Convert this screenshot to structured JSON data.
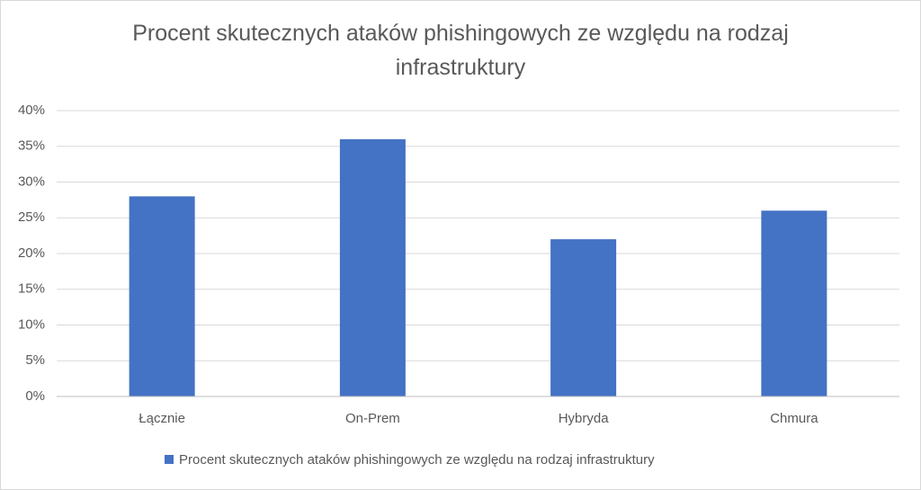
{
  "chart_data": {
    "type": "bar",
    "title": "Procent skutecznych ataków phishingowych ze względu na rodzaj infrastruktury",
    "categories": [
      "Łącznie",
      "On-Prem",
      "Hybryda",
      "Chmura"
    ],
    "series": [
      {
        "name": "Procent skutecznych ataków phishingowych ze względu na rodzaj infrastruktury",
        "color": "#4472c4",
        "values": [
          28,
          36,
          22,
          26
        ]
      }
    ],
    "ylim": [
      0,
      40
    ],
    "yticks": [
      {
        "value": 0,
        "label": "0%"
      },
      {
        "value": 5,
        "label": "5%"
      },
      {
        "value": 10,
        "label": "10%"
      },
      {
        "value": 15,
        "label": "15%"
      },
      {
        "value": 20,
        "label": "20%"
      },
      {
        "value": 25,
        "label": "25%"
      },
      {
        "value": 30,
        "label": "30%"
      },
      {
        "value": 35,
        "label": "35%"
      },
      {
        "value": 40,
        "label": "40%"
      }
    ],
    "grid": true,
    "legend": "bottom"
  }
}
